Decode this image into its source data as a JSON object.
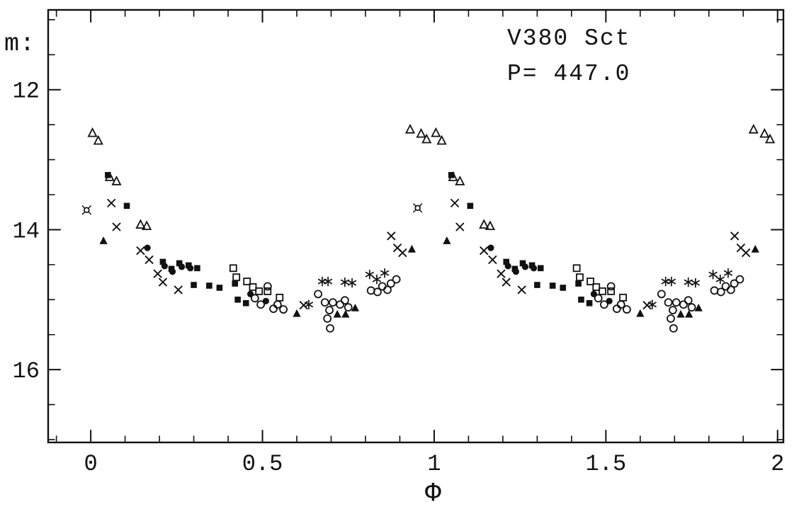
{
  "page": {
    "background": "#ffffff",
    "ink_color": "#111111"
  },
  "chart_data": {
    "type": "scatter",
    "title": "V380 Sct",
    "period_label": "P= 447.0",
    "xlabel": "Φ",
    "ylabel": "m:",
    "x_axis": {
      "lim": [
        -0.124,
        2.017
      ],
      "major_ticks": [
        0,
        0.5,
        1,
        1.5,
        2
      ],
      "tick_labels": [
        "0",
        "0.5",
        "1",
        "1.5",
        "2"
      ],
      "minor_step": 0.1
    },
    "y_axis": {
      "lim": [
        10.86,
        17.04
      ],
      "major_ticks": [
        12,
        14,
        16
      ],
      "tick_labels": [
        "12",
        "14",
        "16"
      ],
      "minor_step": 0.5,
      "inverted_magnitude_scale": true
    },
    "grid": false,
    "legend": "none",
    "phase_duplication": "each observation is plotted at phase and phase+1",
    "series": [
      {
        "name": "dataset-open-triangle",
        "marker": "open-triangle",
        "duplicate_plus_one": true,
        "points": [
          [
            0.005,
            12.62
          ],
          [
            0.022,
            12.73
          ],
          [
            0.055,
            13.25
          ],
          [
            0.075,
            13.31
          ],
          [
            0.145,
            13.93
          ],
          [
            0.163,
            13.95
          ],
          [
            0.93,
            12.57
          ],
          [
            0.962,
            12.63
          ],
          [
            0.978,
            12.71
          ]
        ]
      },
      {
        "name": "dataset-filled-square",
        "marker": "filled-square",
        "duplicate_plus_one": true,
        "points": [
          [
            0.05,
            13.22
          ],
          [
            0.105,
            13.66
          ],
          [
            0.21,
            14.46
          ],
          [
            0.235,
            14.56
          ],
          [
            0.258,
            14.48
          ],
          [
            0.285,
            14.51
          ],
          [
            0.31,
            14.55
          ],
          [
            0.3,
            14.79
          ],
          [
            0.345,
            14.8
          ],
          [
            0.375,
            14.83
          ],
          [
            0.42,
            14.77
          ],
          [
            0.428,
            15.0
          ],
          [
            0.452,
            15.05
          ]
        ]
      },
      {
        "name": "dataset-cross",
        "marker": "cross",
        "duplicate_plus_one": true,
        "points": [
          [
            0.06,
            13.62
          ],
          [
            0.075,
            13.96
          ],
          [
            0.145,
            14.3
          ],
          [
            0.17,
            14.43
          ],
          [
            0.195,
            14.63
          ],
          [
            0.21,
            14.75
          ],
          [
            0.255,
            14.86
          ],
          [
            0.62,
            15.08
          ],
          [
            0.875,
            14.09
          ],
          [
            0.893,
            14.26
          ],
          [
            0.908,
            14.33
          ]
        ]
      },
      {
        "name": "dataset-asterisk",
        "marker": "asterisk",
        "duplicate_plus_one": true,
        "points": [
          [
            0.635,
            15.07
          ],
          [
            0.674,
            14.74
          ],
          [
            0.691,
            14.74
          ],
          [
            0.74,
            14.75
          ],
          [
            0.761,
            14.76
          ],
          [
            0.812,
            14.64
          ],
          [
            0.833,
            14.71
          ],
          [
            0.856,
            14.62
          ]
        ]
      },
      {
        "name": "dataset-open-circle",
        "marker": "open-circle",
        "duplicate_plus_one": true,
        "points": [
          [
            0.478,
            14.98
          ],
          [
            0.495,
            15.07
          ],
          [
            0.515,
            14.81
          ],
          [
            0.532,
            15.13
          ],
          [
            0.544,
            15.07
          ],
          [
            0.561,
            15.14
          ],
          [
            0.662,
            14.92
          ],
          [
            0.682,
            15.04
          ],
          [
            0.689,
            15.27
          ],
          [
            0.695,
            15.15
          ],
          [
            0.697,
            15.41
          ],
          [
            0.705,
            15.04
          ],
          [
            0.726,
            15.07
          ],
          [
            0.74,
            15.01
          ],
          [
            0.75,
            15.11
          ],
          [
            0.816,
            14.87
          ],
          [
            0.835,
            14.89
          ],
          [
            0.849,
            14.81
          ],
          [
            0.864,
            14.86
          ],
          [
            0.874,
            14.77
          ],
          [
            0.89,
            14.71
          ]
        ]
      },
      {
        "name": "dataset-filled-circle",
        "marker": "filled-circle",
        "duplicate_plus_one": true,
        "points": [
          [
            0.165,
            14.26
          ],
          [
            0.215,
            14.52
          ],
          [
            0.238,
            14.6
          ],
          [
            0.265,
            14.53
          ],
          [
            0.29,
            14.55
          ],
          [
            0.465,
            14.92
          ],
          [
            0.51,
            15.02
          ]
        ]
      },
      {
        "name": "dataset-open-square",
        "marker": "open-square",
        "duplicate_plus_one": true,
        "points": [
          [
            0.415,
            14.55
          ],
          [
            0.424,
            14.68
          ],
          [
            0.455,
            14.74
          ],
          [
            0.472,
            14.82
          ],
          [
            0.49,
            14.88
          ],
          [
            0.515,
            14.88
          ],
          [
            0.55,
            14.97
          ]
        ]
      },
      {
        "name": "dataset-filled-triangle",
        "marker": "filled-triangle",
        "duplicate_plus_one": true,
        "points": [
          [
            0.037,
            14.16
          ],
          [
            0.6,
            15.2
          ],
          [
            0.718,
            15.21
          ],
          [
            0.742,
            15.21
          ],
          [
            0.77,
            15.12
          ],
          [
            0.935,
            14.28
          ]
        ]
      },
      {
        "name": "dataset-circle-with-rays",
        "marker": "circle-with-rays",
        "duplicate_plus_one": false,
        "points": [
          [
            -0.012,
            13.72
          ],
          [
            0.952,
            13.69
          ]
        ]
      }
    ]
  }
}
